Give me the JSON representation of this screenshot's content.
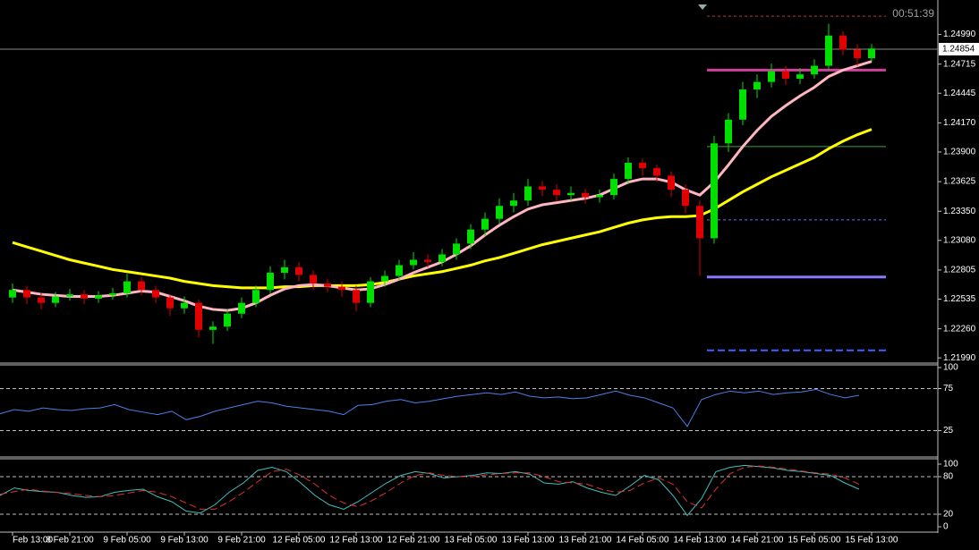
{
  "chart_data": [
    {
      "type": "candlestick",
      "timer": "00:51:39",
      "last_price": 1.24854,
      "ylim": [
        1.2195,
        1.2531
      ],
      "yticks": [
        {
          "value": 1.2499,
          "label": "1.24990"
        },
        1.24715,
        1.24445,
        {
          "value": 1.2417,
          "label": "1.24170"
        },
        {
          "value": 1.239,
          "label": "1.23900"
        },
        1.23625,
        {
          "value": 1.2335,
          "label": "1.23350"
        },
        {
          "value": 1.2308,
          "label": "1.23080"
        },
        1.22805,
        1.22535,
        {
          "value": 1.2226,
          "label": "1.22260"
        },
        {
          "value": 1.2199,
          "label": "1.21990"
        }
      ],
      "up_color": "#00e000",
      "down_color": "#e00000",
      "categories": [
        "Feb 13:00",
        null,
        null,
        null,
        "8 Feb 21:00",
        null,
        null,
        null,
        "9 Feb 05:00",
        null,
        null,
        null,
        "9 Feb 13:00",
        null,
        null,
        null,
        "9 Feb 21:00",
        null,
        null,
        null,
        "12 Feb 05:00",
        null,
        null,
        null,
        "12 Feb 13:00",
        null,
        null,
        null,
        "12 Feb 21:00",
        null,
        null,
        null,
        "13 Feb 05:00",
        null,
        null,
        null,
        "13 Feb 13:00",
        null,
        null,
        null,
        "13 Feb 21:00",
        null,
        null,
        null,
        "14 Feb 05:00",
        null,
        null,
        null,
        "14 Feb 13:00",
        null,
        null,
        null,
        "14 Feb 21:00",
        null,
        null,
        null,
        "15 Feb 05:00",
        null,
        null,
        null,
        "15 Feb 13:00"
      ],
      "ohlc": [
        [
          1.2255,
          1.2268,
          1.225,
          1.2262
        ],
        [
          1.2262,
          1.2266,
          1.2249,
          1.2255
        ],
        [
          1.2255,
          1.2259,
          1.2244,
          1.225
        ],
        [
          1.225,
          1.226,
          1.2246,
          1.2256
        ],
        [
          1.2256,
          1.2263,
          1.2252,
          1.2258
        ],
        [
          1.2258,
          1.2262,
          1.2249,
          1.2254
        ],
        [
          1.2254,
          1.2261,
          1.225,
          1.2257
        ],
        [
          1.2257,
          1.2264,
          1.2253,
          1.2259
        ],
        [
          1.2259,
          1.2277,
          1.2255,
          1.227
        ],
        [
          1.227,
          1.2274,
          1.2257,
          1.2262
        ],
        [
          1.2262,
          1.2266,
          1.225,
          1.2255
        ],
        [
          1.2255,
          1.2258,
          1.2238,
          1.2245
        ],
        [
          1.2245,
          1.2256,
          1.224,
          1.225
        ],
        [
          1.225,
          1.2253,
          1.2218,
          1.2225
        ],
        [
          1.2225,
          1.2233,
          1.2212,
          1.2228
        ],
        [
          1.2228,
          1.2244,
          1.2224,
          1.224
        ],
        [
          1.224,
          1.2255,
          1.2236,
          1.225
        ],
        [
          1.225,
          1.2266,
          1.2246,
          1.2262
        ],
        [
          1.2262,
          1.2284,
          1.2258,
          1.2278
        ],
        [
          1.2278,
          1.229,
          1.2272,
          1.2283
        ],
        [
          1.2283,
          1.2288,
          1.227,
          1.2276
        ],
        [
          1.2276,
          1.228,
          1.2262,
          1.2268
        ],
        [
          1.2268,
          1.2272,
          1.226,
          1.2265
        ],
        [
          1.2265,
          1.227,
          1.2256,
          1.2262
        ],
        [
          1.2262,
          1.2266,
          1.2242,
          1.225
        ],
        [
          1.225,
          1.2274,
          1.2246,
          1.227
        ],
        [
          1.227,
          1.228,
          1.2265,
          1.2275
        ],
        [
          1.2275,
          1.229,
          1.2271,
          1.2285
        ],
        [
          1.2285,
          1.2297,
          1.2281,
          1.229
        ],
        [
          1.229,
          1.2295,
          1.2283,
          1.2288
        ],
        [
          1.2288,
          1.23,
          1.2284,
          1.2295
        ],
        [
          1.2295,
          1.231,
          1.229,
          1.2305
        ],
        [
          1.2305,
          1.2323,
          1.23,
          1.2318
        ],
        [
          1.2318,
          1.2334,
          1.2312,
          1.2328
        ],
        [
          1.2328,
          1.2347,
          1.2323,
          1.234
        ],
        [
          1.234,
          1.2352,
          1.2334,
          1.2345
        ],
        [
          1.2345,
          1.2365,
          1.234,
          1.2358
        ],
        [
          1.2358,
          1.2363,
          1.2349,
          1.2355
        ],
        [
          1.2355,
          1.236,
          1.2344,
          1.235
        ],
        [
          1.235,
          1.2358,
          1.2345,
          1.2352
        ],
        [
          1.2352,
          1.2356,
          1.2342,
          1.2348
        ],
        [
          1.2348,
          1.2355,
          1.2343,
          1.235
        ],
        [
          1.235,
          1.237,
          1.2346,
          1.2365
        ],
        [
          1.2365,
          1.2385,
          1.236,
          1.238
        ],
        [
          1.238,
          1.2384,
          1.2368,
          1.2375
        ],
        [
          1.2375,
          1.2378,
          1.2362,
          1.2368
        ],
        [
          1.2368,
          1.2372,
          1.2348,
          1.2355
        ],
        [
          1.2355,
          1.236,
          1.2333,
          1.234
        ],
        [
          1.234,
          1.2345,
          1.2275,
          1.231
        ],
        [
          1.231,
          1.2405,
          1.2305,
          1.2398
        ],
        [
          1.2398,
          1.2426,
          1.239,
          1.242
        ],
        [
          1.242,
          1.2455,
          1.2415,
          1.2448
        ],
        [
          1.2448,
          1.2462,
          1.244,
          1.2455
        ],
        [
          1.2455,
          1.2472,
          1.245,
          1.2465
        ],
        [
          1.2465,
          1.247,
          1.2452,
          1.2458
        ],
        [
          1.2458,
          1.2468,
          1.2453,
          1.2462
        ],
        [
          1.2462,
          1.2476,
          1.2458,
          1.247
        ],
        [
          1.247,
          1.2509,
          1.2466,
          1.2498
        ],
        [
          1.2498,
          1.2502,
          1.248,
          1.2485
        ],
        [
          1.2485,
          1.249,
          1.247,
          1.2477
        ],
        [
          1.2477,
          1.249,
          1.2474,
          1.2486
        ]
      ],
      "overlays": [
        {
          "color": "#ffff00",
          "values": [
            1.2306,
            1.2302,
            1.2298,
            1.2294,
            1.229,
            1.2287,
            1.2284,
            1.2281,
            1.2279,
            1.2277,
            1.2275,
            1.2273,
            1.227,
            1.2268,
            1.2266,
            1.2265,
            1.2264,
            1.2264,
            1.2264,
            1.2265,
            1.2265,
            1.2266,
            1.2266,
            1.2266,
            1.2266,
            1.2267,
            1.2269,
            1.2272,
            1.2275,
            1.2277,
            1.2279,
            1.2282,
            1.2285,
            1.2289,
            1.2292,
            1.2296,
            1.23,
            1.2304,
            1.2307,
            1.231,
            1.2313,
            1.2316,
            1.232,
            1.2324,
            1.2327,
            1.2329,
            1.233,
            1.233,
            1.2331,
            1.2337,
            1.2345,
            1.2353,
            1.236,
            1.2367,
            1.2373,
            1.2379,
            1.2385,
            1.2393,
            1.24,
            1.2406,
            1.2411
          ]
        },
        {
          "color": "#ffb6c1",
          "values": [
            1.2262,
            1.226,
            1.2258,
            1.2257,
            1.2256,
            1.2256,
            1.2256,
            1.2257,
            1.2259,
            1.2261,
            1.226,
            1.2256,
            1.2252,
            1.2247,
            1.2244,
            1.2243,
            1.2245,
            1.225,
            1.2257,
            1.2263,
            1.2266,
            1.2267,
            1.2266,
            1.2264,
            1.2262,
            1.2263,
            1.2267,
            1.2272,
            1.2278,
            1.2283,
            1.2288,
            1.2295,
            1.2303,
            1.2313,
            1.2322,
            1.233,
            1.2337,
            1.2341,
            1.2343,
            1.2345,
            1.2347,
            1.235,
            1.2356,
            1.2362,
            1.2365,
            1.2365,
            1.2362,
            1.2355,
            1.235,
            1.2362,
            1.2378,
            1.2395,
            1.241,
            1.2423,
            1.2433,
            1.2442,
            1.245,
            1.246,
            1.2466,
            1.247,
            1.2474
          ]
        }
      ],
      "levels": [
        {
          "value": 1.2516,
          "color": "#c03030",
          "style": "dotted",
          "width": 1
        },
        {
          "value": 1.2466,
          "color": "#d0409a",
          "style": "solid",
          "width": 3
        },
        {
          "value": 1.2395,
          "color": "#40a040",
          "style": "solid",
          "width": 1
        },
        {
          "value": 1.2327,
          "color": "#6070ff",
          "style": "dotted",
          "width": 1
        },
        {
          "value": 1.2274,
          "color": "#8878ff",
          "style": "solid",
          "width": 3
        },
        {
          "value": 1.2206,
          "color": "#4060ff",
          "style": "dashed",
          "width": 2
        }
      ]
    },
    {
      "type": "line",
      "ylim": [
        0,
        100
      ],
      "yticks": [
        100,
        75,
        25
      ],
      "levels": [
        75,
        25
      ],
      "series": [
        {
          "color": "#4a80e8",
          "style": "solid",
          "values": [
            45,
            50,
            48,
            52,
            50,
            49,
            51,
            52,
            56,
            50,
            47,
            44,
            48,
            38,
            42,
            48,
            52,
            56,
            60,
            58,
            54,
            52,
            50,
            48,
            44,
            55,
            56,
            60,
            62,
            58,
            60,
            63,
            66,
            68,
            70,
            68,
            71,
            66,
            64,
            65,
            63,
            64,
            68,
            72,
            67,
            64,
            58,
            52,
            30,
            62,
            68,
            72,
            70,
            72,
            68,
            70,
            71,
            74,
            68,
            64,
            67
          ]
        }
      ]
    },
    {
      "type": "line",
      "ylim": [
        0,
        100
      ],
      "yticks": [
        100,
        80,
        20,
        0
      ],
      "levels": [
        80,
        20
      ],
      "series": [
        {
          "color": "#40c0c0",
          "style": "solid",
          "values": [
            50,
            62,
            58,
            56,
            55,
            50,
            47,
            48,
            55,
            58,
            60,
            48,
            40,
            25,
            22,
            35,
            55,
            70,
            90,
            95,
            88,
            70,
            50,
            35,
            28,
            40,
            55,
            70,
            82,
            88,
            85,
            78,
            80,
            82,
            86,
            85,
            88,
            84,
            70,
            68,
            72,
            62,
            55,
            50,
            65,
            82,
            75,
            50,
            18,
            45,
            88,
            95,
            98,
            96,
            94,
            90,
            88,
            85,
            82,
            70,
            60
          ]
        },
        {
          "color": "#e03030",
          "style": "dashed",
          "values": [
            52,
            56,
            60,
            57,
            55,
            53,
            50,
            48,
            50,
            54,
            58,
            55,
            48,
            38,
            28,
            28,
            40,
            55,
            72,
            88,
            92,
            82,
            68,
            50,
            38,
            32,
            42,
            55,
            70,
            82,
            86,
            82,
            80,
            80,
            83,
            85,
            86,
            86,
            80,
            72,
            70,
            68,
            60,
            55,
            58,
            70,
            78,
            68,
            40,
            30,
            60,
            85,
            95,
            97,
            95,
            92,
            89,
            86,
            84,
            78,
            68
          ]
        }
      ]
    }
  ]
}
